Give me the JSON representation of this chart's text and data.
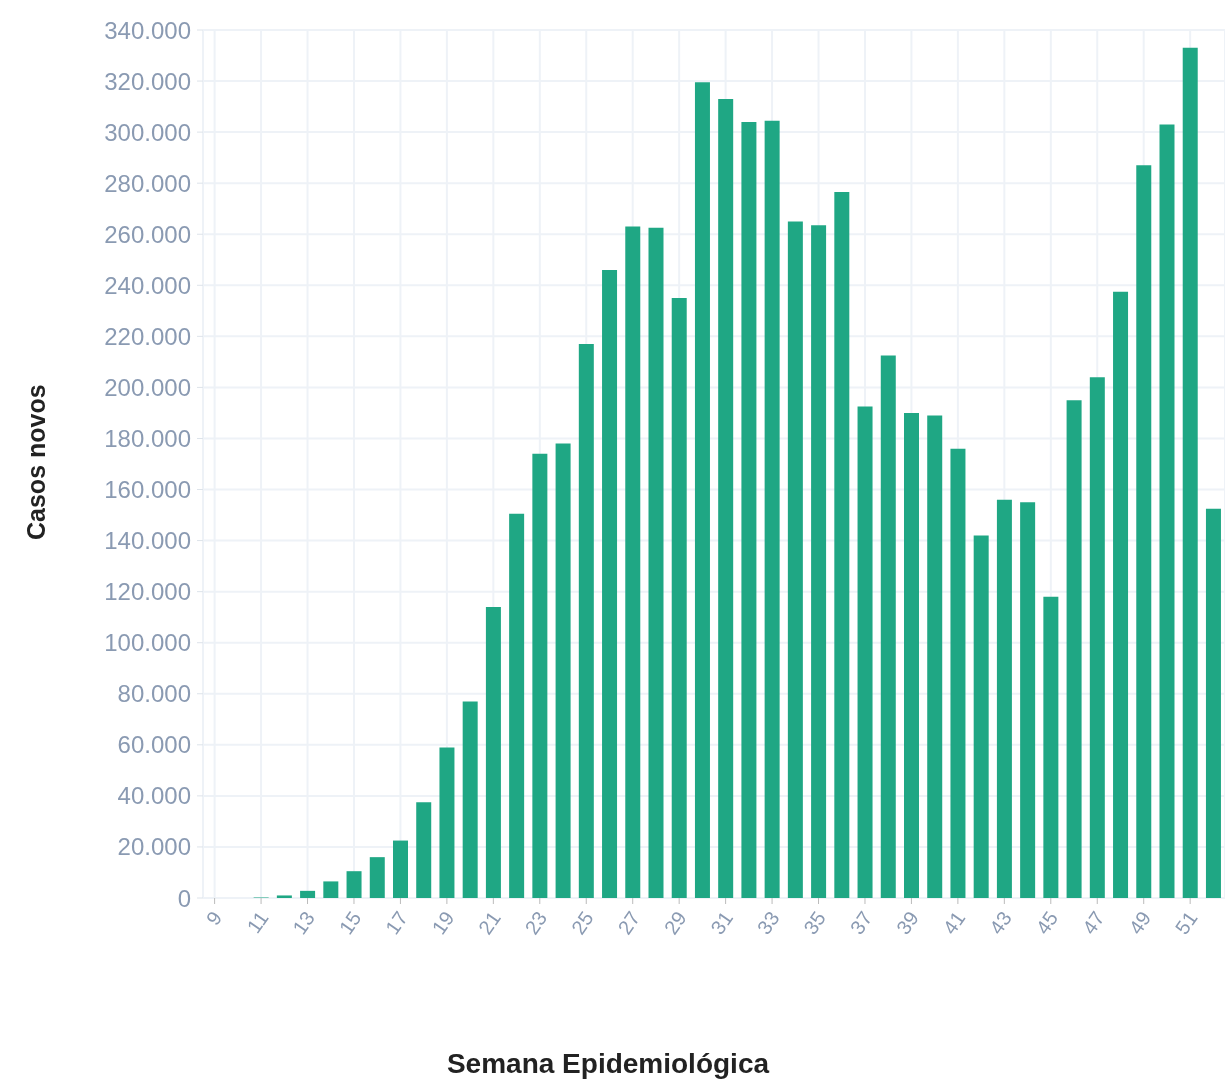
{
  "chart_data": {
    "type": "bar",
    "xlabel": "Semana Epidemiológica",
    "ylabel": "Casos novos",
    "categories": [
      "9",
      null,
      "11",
      null,
      "13",
      null,
      "15",
      null,
      "17",
      null,
      "19",
      null,
      "21",
      null,
      "23",
      null,
      "25",
      null,
      "27",
      null,
      "29",
      null,
      "31",
      null,
      "33",
      null,
      "35",
      null,
      "37",
      null,
      "39",
      null,
      "41",
      null,
      "43",
      null,
      "45",
      null,
      "47",
      null,
      "49",
      null,
      "51",
      null
    ],
    "values": [
      0,
      0,
      200,
      1000,
      2800,
      6500,
      10500,
      16000,
      22500,
      37500,
      59000,
      77000,
      114000,
      150500,
      174000,
      178000,
      217000,
      246000,
      263000,
      262500,
      235000,
      319500,
      313000,
      304000,
      304500,
      265000,
      263500,
      276500,
      192500,
      212500,
      190000,
      189000,
      176000,
      142000,
      156000,
      155000,
      118000,
      195000,
      204000,
      237500,
      287000,
      303000,
      333000,
      152500
    ],
    "color": "#1fa784",
    "ylim": [
      0,
      340000
    ],
    "yticks": [
      {
        "value": 0,
        "label": "0"
      },
      {
        "value": 20000,
        "label": "20.000"
      },
      {
        "value": 40000,
        "label": "40.000"
      },
      {
        "value": 60000,
        "label": "60.000"
      },
      {
        "value": 80000,
        "label": "80.000"
      },
      {
        "value": 100000,
        "label": "100.000"
      },
      {
        "value": 120000,
        "label": "120.000"
      },
      {
        "value": 140000,
        "label": "140.000"
      },
      {
        "value": 160000,
        "label": "160.000"
      },
      {
        "value": 180000,
        "label": "180.000"
      },
      {
        "value": 200000,
        "label": "200.000"
      },
      {
        "value": 220000,
        "label": "220.000"
      },
      {
        "value": 240000,
        "label": "240.000"
      },
      {
        "value": 260000,
        "label": "260.000"
      },
      {
        "value": 280000,
        "label": "280.000"
      },
      {
        "value": 300000,
        "label": "300.000"
      },
      {
        "value": 320000,
        "label": "320.000"
      },
      {
        "value": 340000,
        "label": "340.000"
      }
    ],
    "grid": true,
    "legend": false
  }
}
